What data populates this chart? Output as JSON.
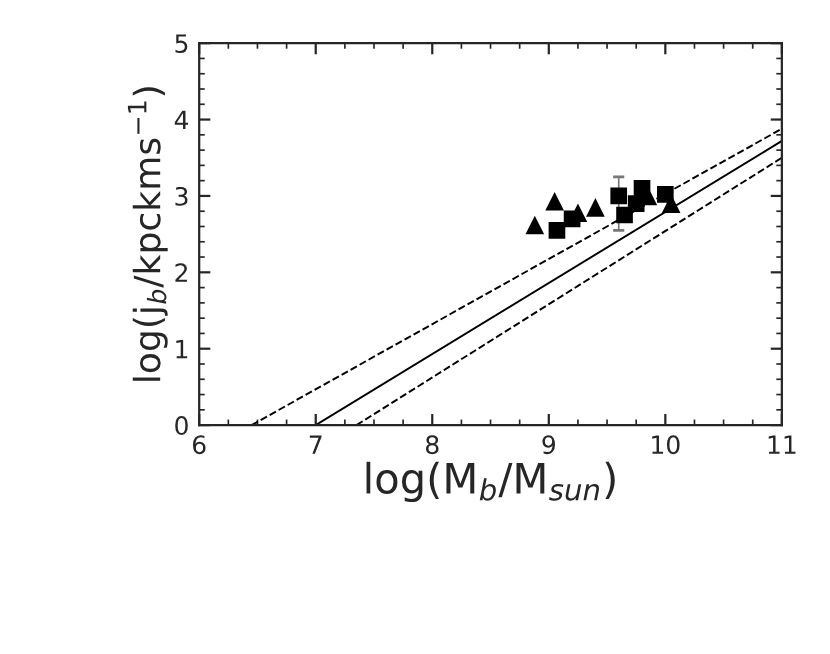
{
  "chart_data": {
    "type": "scatter",
    "xlabel": "log(M$_{b}$/M$_{sun}$)",
    "ylabel": "log(j$_{b}$/kpckms$^{−1}$)",
    "xlim": [
      6,
      11
    ],
    "ylim": [
      0,
      5
    ],
    "xticks": [
      6,
      7,
      8,
      9,
      10,
      11
    ],
    "yticks": [
      0,
      1,
      2,
      3,
      4,
      5
    ],
    "grid": false,
    "series": [
      {
        "type": "line",
        "color": "#000000",
        "line_style": "solid",
        "marker": "none",
        "x": [
          7,
          11
        ],
        "values": [
          0,
          3.72
        ]
      },
      {
        "type": "line",
        "color": "#000000",
        "line_style": "dashed",
        "marker": "none",
        "x": [
          6.45,
          11
        ],
        "values": [
          0,
          3.88
        ]
      },
      {
        "type": "line",
        "color": "#000000",
        "line_style": "dashed",
        "marker": "none",
        "x": [
          7.35,
          11
        ],
        "values": [
          0,
          3.5
        ]
      },
      {
        "color": "#000000",
        "marker": "triangle",
        "x": [
          8.88,
          9.05,
          9.25,
          9.4,
          9.85,
          10.05
        ],
        "values": [
          2.62,
          2.93,
          2.78,
          2.85,
          3.0,
          2.9
        ]
      },
      {
        "color": "#000000",
        "marker": "square",
        "x": [
          9.07,
          9.2,
          9.6,
          9.65,
          9.75,
          9.8,
          10.0
        ],
        "values": [
          2.55,
          2.7,
          3.0,
          2.75,
          2.9,
          3.1,
          3.02
        ],
        "errors": [
          null,
          null,
          [
            2.55,
            3.25
          ],
          null,
          null,
          null,
          null
        ]
      }
    ]
  }
}
